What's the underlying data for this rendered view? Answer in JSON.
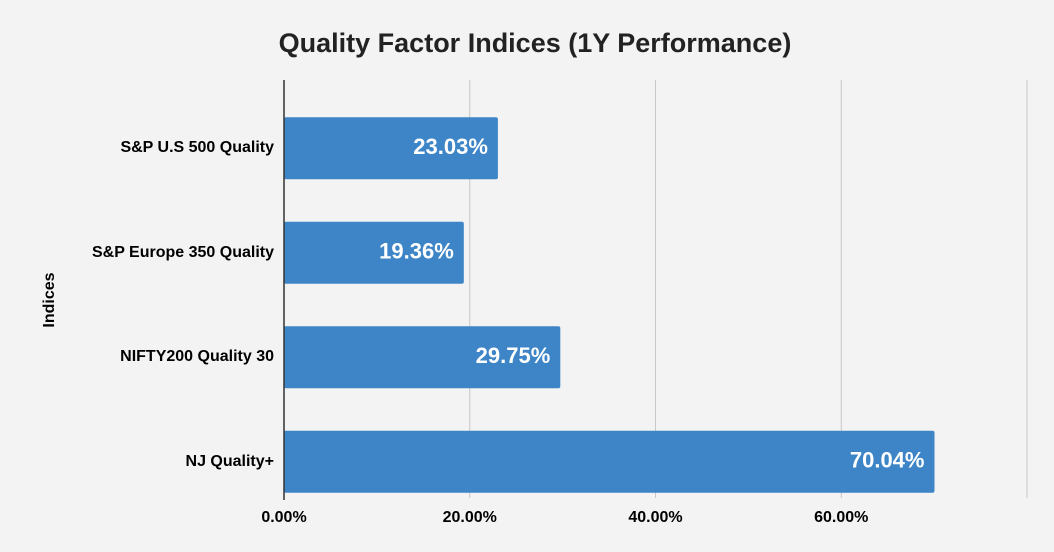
{
  "chart_data": {
    "type": "bar",
    "orientation": "horizontal",
    "title": "Quality Factor Indices (1Y Performance)",
    "y_label": "Indices",
    "categories": [
      "S&P U.S 500 Quality",
      "S&P Europe 350 Quality",
      "NIFTY200 Quality 30",
      "NJ Quality+"
    ],
    "values": [
      23.03,
      19.36,
      29.75,
      70.04
    ],
    "value_labels": [
      "23.03%",
      "19.36%",
      "29.75%",
      "70.04%"
    ],
    "color": "#3d85c6",
    "xlim": [
      0,
      80
    ],
    "xticks": [
      {
        "value": 0,
        "label": "0.00%"
      },
      {
        "value": 20,
        "label": "20.00%"
      },
      {
        "value": 40,
        "label": "40.00%"
      },
      {
        "value": 60,
        "label": "60.00%"
      }
    ],
    "grid": true
  }
}
